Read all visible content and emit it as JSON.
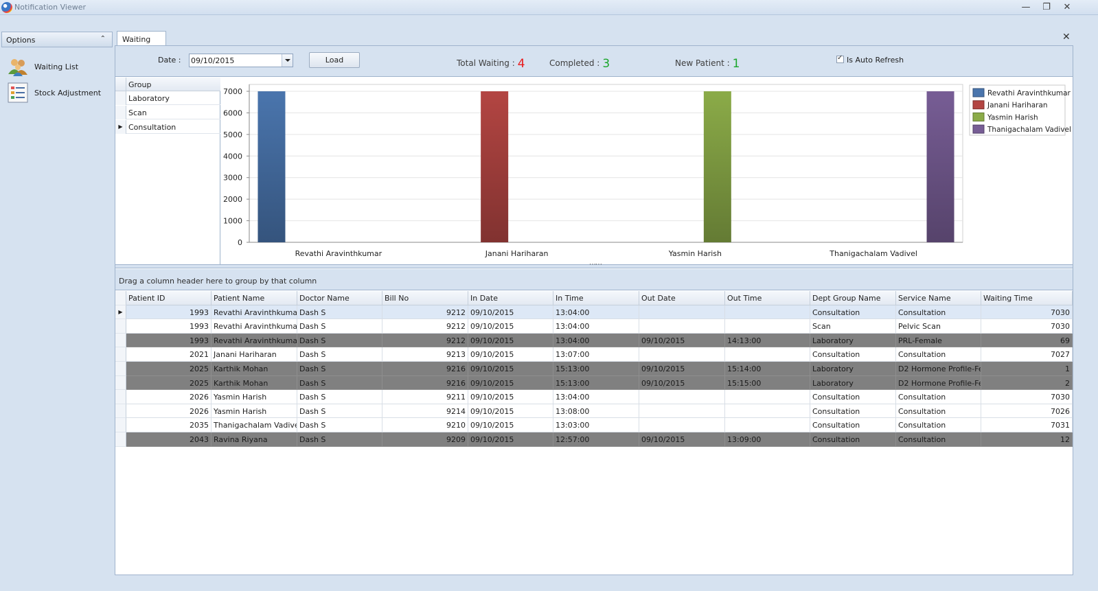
{
  "window": {
    "title": "Notification Viewer"
  },
  "leftnav": {
    "header": "Options",
    "items": [
      {
        "label": "Waiting List",
        "icon": "people-icon"
      },
      {
        "label": "Stock Adjustment",
        "icon": "list-icon"
      }
    ]
  },
  "tab": {
    "label": "Waiting List"
  },
  "filter": {
    "date_label": "Date :",
    "date_value": "09/10/2015",
    "load_label": "Load",
    "total_waiting_label": "Total Waiting :",
    "total_waiting_value": "4",
    "completed_label": "Completed :",
    "completed_value": "3",
    "new_patient_label": "New Patient :",
    "new_patient_value": "1",
    "auto_refresh_label": "Is Auto Refresh",
    "auto_refresh_checked": true,
    "colors": {
      "waiting": "#e8191b",
      "completed": "#19a52a",
      "new": "#19a52a"
    }
  },
  "groups": {
    "header": "Group",
    "items": [
      "Laboratory",
      "Scan",
      "Consultation"
    ],
    "selected_index": 2
  },
  "chart_data": {
    "type": "bar",
    "categories": [
      "Revathi Aravinthkumar",
      "Janani Hariharan",
      "Yasmin Harish",
      "Thanigachalam Vadivel"
    ],
    "series": [
      {
        "name": "Revathi Aravinthkumar",
        "color": "#4a75ad",
        "values": [
          7000,
          null,
          null,
          null
        ]
      },
      {
        "name": "Janani Hariharan",
        "color": "#b34542",
        "values": [
          null,
          7000,
          null,
          null
        ]
      },
      {
        "name": "Yasmin Harish",
        "color": "#8bab48",
        "values": [
          null,
          null,
          7000,
          null
        ]
      },
      {
        "name": "Thanigachalam Vadivel",
        "color": "#775d95",
        "values": [
          null,
          null,
          null,
          7000
        ]
      }
    ],
    "ylim": [
      0,
      7000
    ],
    "yticks": [
      0,
      1000,
      2000,
      3000,
      4000,
      5000,
      6000,
      7000
    ],
    "grid": true,
    "legend": "top-right"
  },
  "group_panel_text": "Drag a column header here to group by that column",
  "grid": {
    "columns": [
      "Patient ID",
      "Patient Name",
      "Doctor Name",
      "Bill No",
      "In Date",
      "In Time",
      "Out Date",
      "Out Time",
      "Dept Group Name",
      "Service Name",
      "Waiting Time"
    ],
    "rows": [
      {
        "state": "sel",
        "cells": [
          "1993",
          "Revathi Aravinthkumar",
          "Dash S",
          "9212",
          "09/10/2015",
          "13:04:00",
          "",
          "",
          "Consultation",
          "Consultation",
          "7030"
        ]
      },
      {
        "state": "",
        "cells": [
          "1993",
          "Revathi Aravinthkumar",
          "Dash S",
          "9212",
          "09/10/2015",
          "13:04:00",
          "",
          "",
          "Scan",
          "Pelvic Scan",
          "7030"
        ]
      },
      {
        "state": "done",
        "cells": [
          "1993",
          "Revathi Aravinthkumar",
          "Dash S",
          "9212",
          "09/10/2015",
          "13:04:00",
          "09/10/2015",
          "14:13:00",
          "Laboratory",
          "PRL-Female",
          "69"
        ]
      },
      {
        "state": "",
        "cells": [
          "2021",
          "Janani Hariharan",
          "Dash S",
          "9213",
          "09/10/2015",
          "13:07:00",
          "",
          "",
          "Consultation",
          "Consultation",
          "7027"
        ]
      },
      {
        "state": "done",
        "cells": [
          "2025",
          "Karthik Mohan",
          "Dash S",
          "9216",
          "09/10/2015",
          "15:13:00",
          "09/10/2015",
          "15:14:00",
          "Laboratory",
          "D2 Hormone Profile-Fe...",
          "1"
        ]
      },
      {
        "state": "done",
        "cells": [
          "2025",
          "Karthik Mohan",
          "Dash S",
          "9216",
          "09/10/2015",
          "15:13:00",
          "09/10/2015",
          "15:15:00",
          "Laboratory",
          "D2 Hormone Profile-Fe...",
          "2"
        ]
      },
      {
        "state": "",
        "cells": [
          "2026",
          "Yasmin Harish",
          "Dash S",
          "9211",
          "09/10/2015",
          "13:04:00",
          "",
          "",
          "Consultation",
          "Consultation",
          "7030"
        ]
      },
      {
        "state": "",
        "cells": [
          "2026",
          "Yasmin Harish",
          "Dash S",
          "9214",
          "09/10/2015",
          "13:08:00",
          "",
          "",
          "Consultation",
          "Consultation",
          "7026"
        ]
      },
      {
        "state": "",
        "cells": [
          "2035",
          "Thanigachalam Vadivel",
          "Dash S",
          "9210",
          "09/10/2015",
          "13:03:00",
          "",
          "",
          "Consultation",
          "Consultation",
          "7031"
        ]
      },
      {
        "state": "done",
        "cells": [
          "2043",
          "Ravina Riyana",
          "Dash S",
          "9209",
          "09/10/2015",
          "12:57:00",
          "09/10/2015",
          "13:09:00",
          "Consultation",
          "Consultation",
          "12"
        ]
      }
    ]
  }
}
